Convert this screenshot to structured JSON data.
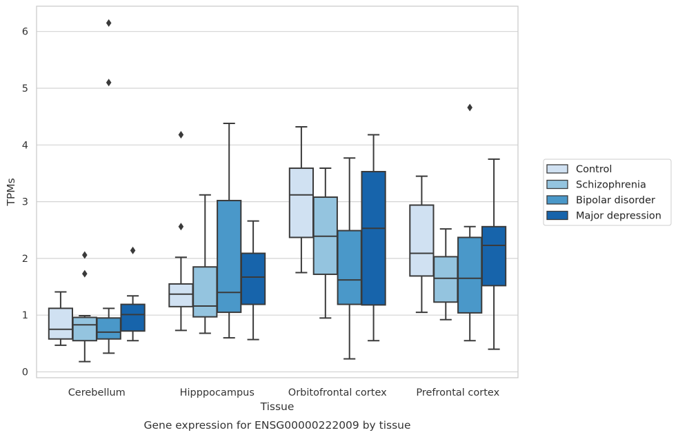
{
  "chart_data": {
    "type": "box",
    "xlabel": "Tissue",
    "ylabel": "TPMs",
    "caption": "Gene expression for ENSG00000222009 by tissue",
    "categories": [
      "Cerebellum",
      "Hipppocampus",
      "Orbitofrontal cortex",
      "Prefrontal cortex"
    ],
    "yticks": [
      0,
      1,
      2,
      3,
      4,
      5,
      6
    ],
    "ylim": [
      -0.1,
      6.45
    ],
    "grid": "horizontal",
    "legend_position": "right",
    "series": [
      {
        "name": "Control",
        "color": "#d0e1f2",
        "boxes": [
          {
            "whisker_low": 0.47,
            "q1": 0.58,
            "median": 0.75,
            "q3": 1.12,
            "whisker_high": 1.41,
            "outliers": []
          },
          {
            "whisker_low": 0.73,
            "q1": 1.15,
            "median": 1.37,
            "q3": 1.55,
            "whisker_high": 2.02,
            "outliers": [
              2.56,
              4.18
            ]
          },
          {
            "whisker_low": 1.75,
            "q1": 2.37,
            "median": 3.12,
            "q3": 3.59,
            "whisker_high": 4.32,
            "outliers": []
          },
          {
            "whisker_low": 1.05,
            "q1": 1.69,
            "median": 2.09,
            "q3": 2.94,
            "whisker_high": 3.45,
            "outliers": []
          }
        ]
      },
      {
        "name": "Schizophrenia",
        "color": "#94c4df",
        "boxes": [
          {
            "whisker_low": 0.18,
            "q1": 0.55,
            "median": 0.83,
            "q3": 0.96,
            "whisker_high": 0.99,
            "outliers": [
              1.73,
              2.06
            ]
          },
          {
            "whisker_low": 0.68,
            "q1": 0.97,
            "median": 1.16,
            "q3": 1.85,
            "whisker_high": 3.12,
            "outliers": []
          },
          {
            "whisker_low": 0.95,
            "q1": 1.72,
            "median": 2.39,
            "q3": 3.08,
            "whisker_high": 3.59,
            "outliers": []
          },
          {
            "whisker_low": 0.92,
            "q1": 1.23,
            "median": 1.65,
            "q3": 2.03,
            "whisker_high": 2.52,
            "outliers": []
          }
        ]
      },
      {
        "name": "Bipolar disorder",
        "color": "#4a98c9",
        "boxes": [
          {
            "whisker_low": 0.33,
            "q1": 0.58,
            "median": 0.7,
            "q3": 0.95,
            "whisker_high": 1.12,
            "outliers": [
              5.1,
              6.15
            ]
          },
          {
            "whisker_low": 0.6,
            "q1": 1.05,
            "median": 1.4,
            "q3": 3.02,
            "whisker_high": 4.38,
            "outliers": []
          },
          {
            "whisker_low": 0.23,
            "q1": 1.19,
            "median": 1.62,
            "q3": 2.49,
            "whisker_high": 3.77,
            "outliers": []
          },
          {
            "whisker_low": 0.55,
            "q1": 1.04,
            "median": 1.65,
            "q3": 2.37,
            "whisker_high": 2.56,
            "outliers": [
              4.66
            ]
          }
        ]
      },
      {
        "name": "Major depression",
        "color": "#1764ab",
        "boxes": [
          {
            "whisker_low": 0.55,
            "q1": 0.72,
            "median": 1.01,
            "q3": 1.19,
            "whisker_high": 1.34,
            "outliers": [
              2.14
            ]
          },
          {
            "whisker_low": 0.57,
            "q1": 1.19,
            "median": 1.67,
            "q3": 2.09,
            "whisker_high": 2.66,
            "outliers": []
          },
          {
            "whisker_low": 0.55,
            "q1": 1.18,
            "median": 2.53,
            "q3": 3.53,
            "whisker_high": 4.18,
            "outliers": []
          },
          {
            "whisker_low": 0.4,
            "q1": 1.52,
            "median": 2.23,
            "q3": 2.56,
            "whisker_high": 3.75,
            "outliers": []
          }
        ]
      }
    ]
  }
}
